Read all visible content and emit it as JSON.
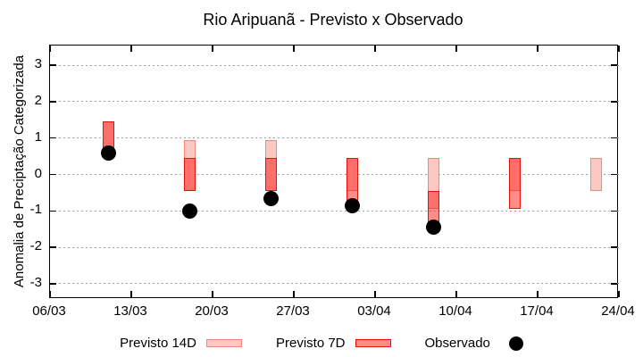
{
  "title": "Rio Aripuanã - Previsto x Observado",
  "background": "#ffffff",
  "legend": {
    "items": [
      {
        "label": "Previsto 14D",
        "swatch": "box"
      },
      {
        "label": "Previsto 7D",
        "swatch": "box"
      },
      {
        "label": "Observado",
        "swatch": "dot"
      }
    ]
  },
  "chart_data": {
    "type": "bar",
    "subtype": "forecast-interval-boxes-with-observed-scatter",
    "title": "Rio Aripuanã - Previsto x Observado",
    "xlabel": "",
    "ylabel": "Anomalia de Preciptação Categorizada",
    "ylim": [
      -3.42,
      3.54
    ],
    "yticks": [
      -3,
      -2,
      -1,
      0,
      1,
      2,
      3
    ],
    "xticks": [
      {
        "day": 0,
        "label": "06/03"
      },
      {
        "day": 7,
        "label": "13/03"
      },
      {
        "day": 14,
        "label": "20/03"
      },
      {
        "day": 21,
        "label": "27/03"
      },
      {
        "day": 28,
        "label": "03/04"
      },
      {
        "day": 35,
        "label": "10/04"
      },
      {
        "day": 42,
        "label": "17/04"
      },
      {
        "day": 49,
        "label": "24/04"
      }
    ],
    "grid": "horizontal-dotted",
    "grid_color": "#a0a0a0",
    "legend_position": "bottom",
    "series": [
      {
        "name": "Previsto 14D",
        "type": "box",
        "fill": "#fbc9c2",
        "fill_alpha": 1,
        "border": "#f0897b",
        "points": [
          {
            "date": "11/03",
            "day": 5,
            "low": 0.45,
            "high": 1.45
          },
          {
            "date": "18/03",
            "day": 12,
            "low": -0.45,
            "high": 0.95
          },
          {
            "date": "25/03",
            "day": 19,
            "low": -0.45,
            "high": 0.95
          },
          {
            "date": "01/04",
            "day": 26,
            "low": -0.45,
            "high": 0.45
          },
          {
            "date": "08/04",
            "day": 33,
            "low": -0.95,
            "high": 0.45
          },
          {
            "date": "15/04",
            "day": 40,
            "low": -0.45,
            "high": 0.45
          },
          {
            "date": "22/04",
            "day": 47,
            "low": -0.45,
            "high": 0.45
          }
        ]
      },
      {
        "name": "Previsto 7D",
        "type": "box",
        "fill": "#ff0a05",
        "fill_alpha": 0.47,
        "border": "#e90f0b",
        "points": [
          {
            "date": "11/03",
            "day": 5,
            "low": 0.45,
            "high": 1.45
          },
          {
            "date": "18/03",
            "day": 12,
            "low": -0.45,
            "high": 0.45
          },
          {
            "date": "25/03",
            "day": 19,
            "low": -0.45,
            "high": 0.45
          },
          {
            "date": "01/04",
            "day": 26,
            "low": -0.95,
            "high": 0.45
          },
          {
            "date": "08/04",
            "day": 33,
            "low": -1.45,
            "high": -0.45
          },
          {
            "date": "15/04",
            "day": 40,
            "low": -0.95,
            "high": 0.45
          }
        ]
      },
      {
        "name": "Observado",
        "type": "scatter",
        "color": "#000000",
        "points": [
          {
            "date": "11/03",
            "day": 5,
            "value": 0.6
          },
          {
            "date": "18/03",
            "day": 12,
            "value": -1.0
          },
          {
            "date": "25/03",
            "day": 19,
            "value": -0.65
          },
          {
            "date": "01/04",
            "day": 26,
            "value": -0.85
          },
          {
            "date": "08/04",
            "day": 33,
            "value": -1.45
          }
        ]
      }
    ]
  }
}
